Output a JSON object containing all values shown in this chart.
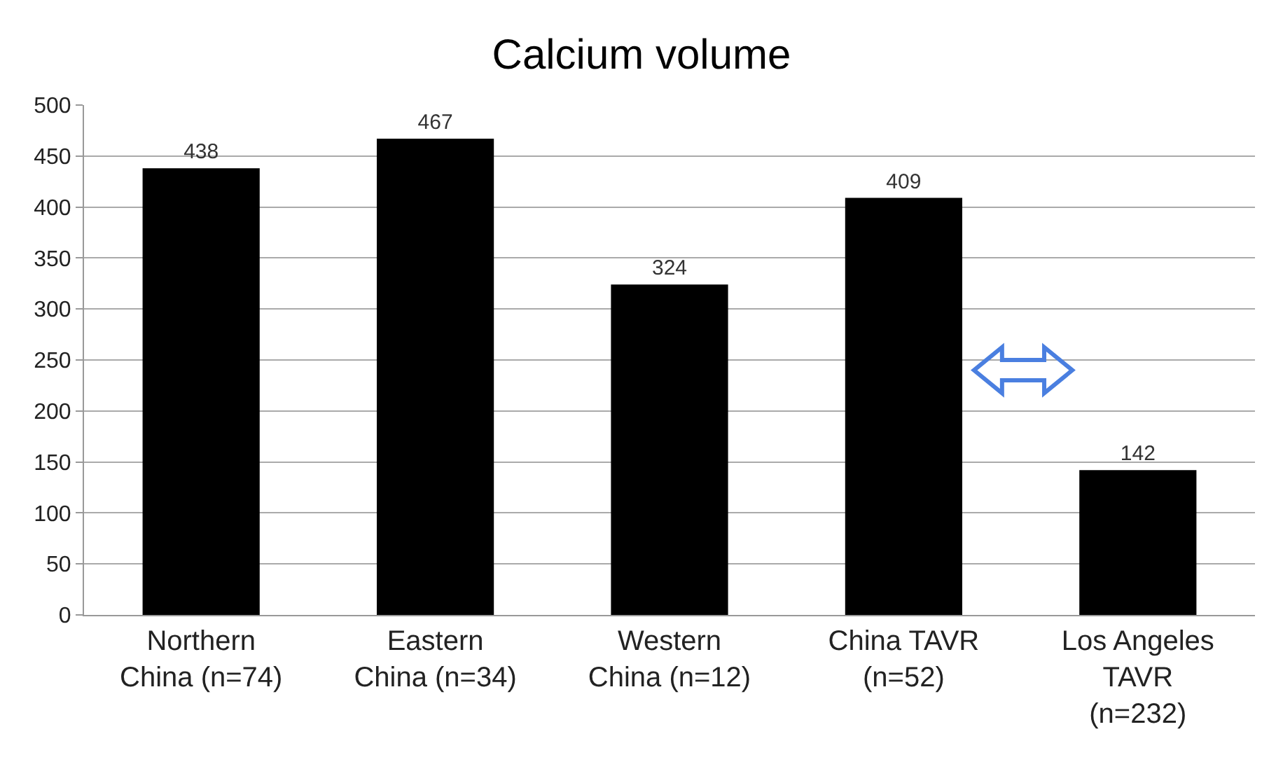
{
  "chart_data": {
    "type": "bar",
    "title": "Calcium volume",
    "categories": [
      "Northern\nChina (n=74)",
      "Eastern\nChina (n=34)",
      "Western\nChina (n=12)",
      "China TAVR\n(n=52)",
      "Los Angeles\nTAVR\n(n=232)"
    ],
    "values": [
      438,
      467,
      324,
      409,
      142
    ],
    "color": "#000000",
    "ylim": [
      0,
      500
    ],
    "yticks": [
      0,
      50,
      100,
      150,
      200,
      250,
      300,
      350,
      400,
      450,
      500
    ],
    "grid": "y",
    "data_labels": true
  }
}
